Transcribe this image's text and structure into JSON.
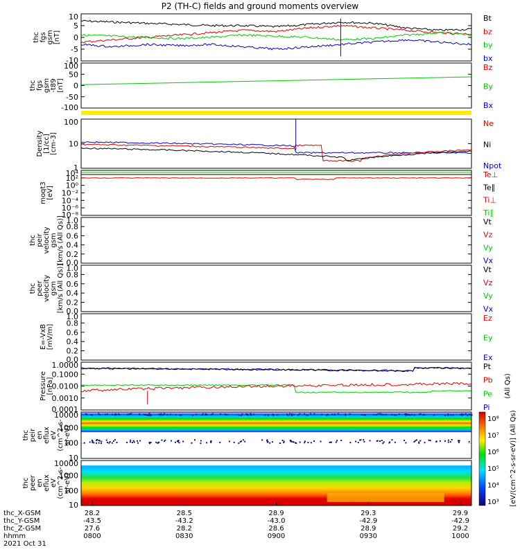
{
  "title": "P2 (TH-C) fields and ground moments overview",
  "colors": {
    "black": "#000000",
    "red": "#e00000",
    "green": "#00c800",
    "blue": "#0000c8",
    "yellow": "#ffee00"
  },
  "panels": [
    {
      "id": "fgs",
      "ylabel": [
        "thc",
        "fgs",
        "gsm",
        "[nT]"
      ],
      "ticks": [
        "10",
        "5",
        "0",
        "-5",
        "-10"
      ],
      "yrange": [
        -10,
        10
      ],
      "legend": [
        {
          "label": "Bt",
          "color": "black"
        },
        {
          "label": "bz",
          "color": "red"
        },
        {
          "label": "by",
          "color": "green"
        },
        {
          "label": "bx",
          "color": "blue"
        }
      ]
    },
    {
      "id": "fgs2",
      "ylabel": [
        "thc",
        "fgs",
        "gsm",
        "-t89",
        "[nT]"
      ],
      "ticks": [
        "100",
        "50",
        "0",
        "-50",
        "-100"
      ],
      "yrange": [
        -125,
        125
      ],
      "legend": [
        {
          "label": "Bz",
          "color": "red"
        },
        {
          "label": "By",
          "color": "green"
        },
        {
          "label": "Bx",
          "color": "blue"
        }
      ]
    },
    {
      "id": "density",
      "ylabel": [
        "Density",
        "[1/cc]",
        "[cm-3]"
      ],
      "ticks": [
        "100",
        "10",
        "1"
      ],
      "legend": [
        {
          "label": "Ne",
          "color": "red"
        },
        {
          "label": "Ni",
          "color": "black"
        },
        {
          "label": "Npot",
          "color": "blue"
        }
      ]
    },
    {
      "id": "temp",
      "ylabel": [
        "moqt3",
        "[eV]"
      ],
      "ticks": [
        "10⁴",
        "10²",
        "10⁰",
        "10⁻²",
        "10⁻⁴",
        "10⁻⁶",
        "10⁻⁸"
      ],
      "legend": [
        {
          "label": "Te⊥",
          "color": "red"
        },
        {
          "label": "Te∥",
          "color": "black"
        },
        {
          "label": "Ti⊥",
          "color": "red"
        },
        {
          "label": "Ti∥",
          "color": "green"
        }
      ]
    },
    {
      "id": "peirvel",
      "ylabel": [
        "thc",
        "peir",
        "velocity",
        "gsm",
        "[km/s (All Qs)]"
      ],
      "ticks": [
        "1.0",
        "0.8",
        "0.6",
        "0.4",
        "0.2",
        "0.0"
      ],
      "legend": [
        {
          "label": "Vt",
          "color": "black"
        },
        {
          "label": "Vz",
          "color": "red"
        },
        {
          "label": "Vy",
          "color": "green"
        },
        {
          "label": "Vx",
          "color": "blue"
        }
      ]
    },
    {
      "id": "peervel",
      "ylabel": [
        "thc",
        "peer",
        "velocity",
        "gsm",
        "[km/s (All Qs)]"
      ],
      "ticks": [
        "1.0",
        "0.8",
        "0.6",
        "0.4",
        "0.2",
        "0.0"
      ],
      "legend": [
        {
          "label": "Vt",
          "color": "black"
        },
        {
          "label": "Vz",
          "color": "red"
        },
        {
          "label": "Vy",
          "color": "green"
        },
        {
          "label": "Vx",
          "color": "blue"
        }
      ]
    },
    {
      "id": "efield",
      "ylabel": [
        "E=-VxB",
        "[mV/m]"
      ],
      "ticks": [
        "1.0",
        "0.8",
        "0.6",
        "0.4",
        "0.2",
        "0.0"
      ],
      "legend": [
        {
          "label": "Ez",
          "color": "red"
        },
        {
          "label": "Ey",
          "color": "green"
        },
        {
          "label": "Ex",
          "color": "blue"
        }
      ]
    },
    {
      "id": "pressure",
      "ylabel": [
        "Pressure",
        "[nPa]"
      ],
      "ticks": [
        "1.0000",
        "0.1000",
        "0.0100",
        "0.0010",
        "0.0001"
      ],
      "legend": [
        {
          "label": "Pt",
          "color": "black"
        },
        {
          "label": "Pb",
          "color": "red"
        },
        {
          "label": "Pe",
          "color": "green"
        },
        {
          "label": "Pi",
          "color": "blue"
        }
      ],
      "right_note": "(All Qs)"
    },
    {
      "id": "peireflux",
      "ylabel": [
        "thc",
        "peir",
        "en",
        "eflux",
        "eV",
        "(cm^2-s-",
        "sr-eV)"
      ],
      "ticks": [
        "10000",
        "1000",
        "100",
        "10"
      ]
    },
    {
      "id": "peereflux",
      "ylabel": [
        "thc",
        "peer",
        "en",
        "eflux",
        "eV",
        "(cm^2-s-",
        "sr-eV)"
      ],
      "ticks": [
        "10000",
        "1000",
        "100",
        "10"
      ]
    }
  ],
  "colorbar": {
    "ticks": [
      "10⁸",
      "10⁷",
      "10⁶",
      "10⁵",
      "10⁴",
      "10³"
    ],
    "label": "[eV/(cm^2-s-sr-eV)] (All Qs)"
  },
  "xaxis": {
    "row_labels": [
      "thc_X-GSM",
      "thc_Y-GSM",
      "thc_Z-GSM",
      "hhmm",
      "2021 Oct 31"
    ],
    "ticks": [
      {
        "x": "28.2",
        "y": "-43.5",
        "z": "27.6",
        "t": "0800"
      },
      {
        "x": "28.5",
        "y": "-43.2",
        "z": "28.2",
        "t": "0830"
      },
      {
        "x": "28.9",
        "y": "-43.0",
        "z": "28.6",
        "t": "0900"
      },
      {
        "x": "29.3",
        "y": "-42.9",
        "z": "28.9",
        "t": "0930"
      },
      {
        "x": "29.9",
        "y": "-42.9",
        "z": "29.2",
        "t": "1000"
      }
    ]
  },
  "chart_data": {
    "type": "line",
    "x_range": [
      "0800",
      "1000"
    ],
    "series": [
      {
        "name": "Bt",
        "values": [
          7,
          6.5,
          6,
          5.5,
          5,
          5,
          4.5,
          5.5,
          6.5,
          6,
          4,
          3,
          3.5
        ]
      },
      {
        "name": "bz",
        "values": [
          -2,
          -1,
          0,
          1,
          2,
          3,
          2.5,
          4,
          5,
          4,
          3,
          2,
          1.5
        ]
      },
      {
        "name": "by",
        "values": [
          1,
          0.5,
          0,
          -0.5,
          0,
          1,
          0.5,
          0,
          -1,
          -0.5,
          1,
          2,
          1
        ]
      },
      {
        "name": "bx",
        "values": [
          -3,
          -4,
          -3,
          -3.5,
          -3,
          -4,
          -5,
          -4,
          -3,
          -2,
          -1,
          -2,
          -3
        ]
      }
    ]
  }
}
